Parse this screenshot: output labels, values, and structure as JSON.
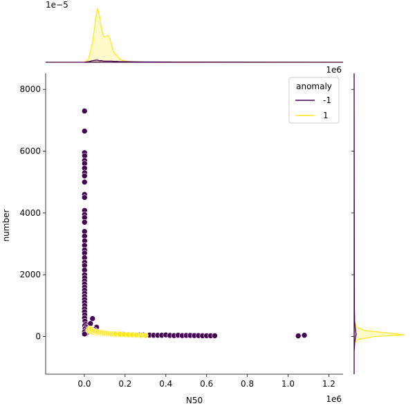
{
  "chart_data": {
    "type": "scatter",
    "title": "",
    "xlabel": "N50",
    "ylabel": "number",
    "xlim": [
      -190000,
      1270000
    ],
    "ylim": [
      -1220,
      8520
    ],
    "x_offset_label": "1e6",
    "y_offset_label": "1e6",
    "top_marginal_offset_label": "1e−5",
    "x_ticks": [
      {
        "value": 0,
        "label": "0.0"
      },
      {
        "value": 200000,
        "label": "0.2"
      },
      {
        "value": 400000,
        "label": "0.4"
      },
      {
        "value": 600000,
        "label": "0.6"
      },
      {
        "value": 800000,
        "label": "0.8"
      },
      {
        "value": 1000000,
        "label": "1.0"
      },
      {
        "value": 1200000,
        "label": "1.2"
      }
    ],
    "y_ticks": [
      {
        "value": 0,
        "label": "0"
      },
      {
        "value": 2000,
        "label": "2000"
      },
      {
        "value": 4000,
        "label": "4000"
      },
      {
        "value": 6000,
        "label": "6000"
      },
      {
        "value": 8000,
        "label": "8000"
      }
    ],
    "legend": {
      "title": "anomaly",
      "placement": "top-right",
      "entries": [
        {
          "label": "-1",
          "color": "#440154"
        },
        {
          "label": "1",
          "color": "#fde725"
        }
      ]
    },
    "series": [
      {
        "name": "-1",
        "color": "#440154",
        "points": [
          [
            1000,
            7300
          ],
          [
            1000,
            6650
          ],
          [
            1000,
            5950
          ],
          [
            1500,
            5850
          ],
          [
            1000,
            5700
          ],
          [
            1200,
            5600
          ],
          [
            1000,
            5450
          ],
          [
            1500,
            5300
          ],
          [
            1000,
            5200
          ],
          [
            1000,
            5000
          ],
          [
            1000,
            4600
          ],
          [
            1000,
            4500
          ],
          [
            1200,
            4080
          ],
          [
            1000,
            3950
          ],
          [
            1000,
            3850
          ],
          [
            1000,
            3700
          ],
          [
            1000,
            3400
          ],
          [
            1000,
            3250
          ],
          [
            1500,
            3100
          ],
          [
            1000,
            2950
          ],
          [
            1000,
            2800
          ],
          [
            1000,
            2700
          ],
          [
            1000,
            2550
          ],
          [
            1200,
            2400
          ],
          [
            1000,
            2300
          ],
          [
            1000,
            2150
          ],
          [
            1000,
            2000
          ],
          [
            1500,
            1900
          ],
          [
            1000,
            1800
          ],
          [
            1000,
            1700
          ],
          [
            1000,
            1600
          ],
          [
            1000,
            1500
          ],
          [
            1200,
            1400
          ],
          [
            1000,
            1300
          ],
          [
            1000,
            1200
          ],
          [
            1000,
            1100
          ],
          [
            1500,
            1000
          ],
          [
            1000,
            900
          ],
          [
            1000,
            800
          ],
          [
            2000,
            700
          ],
          [
            1000,
            600
          ],
          [
            3000,
            500
          ],
          [
            5000,
            400
          ],
          [
            2000,
            350
          ],
          [
            8000,
            300
          ],
          [
            4000,
            250
          ],
          [
            10000,
            200
          ],
          [
            1000,
            150
          ],
          [
            12000,
            120
          ],
          [
            1000,
            80
          ],
          [
            40000,
            580
          ],
          [
            30000,
            420
          ],
          [
            60000,
            300
          ],
          [
            50000,
            220
          ],
          [
            35000,
            180
          ],
          [
            25000,
            150
          ],
          [
            70000,
            130
          ],
          [
            90000,
            110
          ],
          [
            110000,
            100
          ],
          [
            150000,
            90
          ],
          [
            170000,
            80
          ],
          [
            190000,
            70
          ],
          [
            220000,
            60
          ],
          [
            240000,
            60
          ],
          [
            270000,
            50
          ],
          [
            290000,
            50
          ],
          [
            320000,
            45
          ],
          [
            340000,
            40
          ],
          [
            360000,
            40
          ],
          [
            380000,
            40
          ],
          [
            400000,
            50
          ],
          [
            420000,
            35
          ],
          [
            440000,
            30
          ],
          [
            460000,
            40
          ],
          [
            480000,
            30
          ],
          [
            500000,
            35
          ],
          [
            520000,
            35
          ],
          [
            540000,
            30
          ],
          [
            560000,
            30
          ],
          [
            580000,
            25
          ],
          [
            600000,
            25
          ],
          [
            620000,
            25
          ],
          [
            640000,
            25
          ],
          [
            1050000,
            20
          ],
          [
            1080000,
            40
          ]
        ]
      },
      {
        "name": "1",
        "color": "#fde725",
        "points": [
          [
            20000,
            200
          ],
          [
            30000,
            160
          ],
          [
            40000,
            140
          ],
          [
            50000,
            130
          ],
          [
            60000,
            120
          ],
          [
            70000,
            110
          ],
          [
            80000,
            100
          ],
          [
            90000,
            95
          ],
          [
            100000,
            90
          ],
          [
            110000,
            85
          ],
          [
            120000,
            80
          ],
          [
            130000,
            75
          ],
          [
            140000,
            70
          ],
          [
            150000,
            65
          ],
          [
            160000,
            60
          ],
          [
            170000,
            60
          ],
          [
            180000,
            55
          ],
          [
            200000,
            50
          ],
          [
            220000,
            45
          ],
          [
            240000,
            45
          ],
          [
            260000,
            40
          ],
          [
            280000,
            40
          ],
          [
            300000,
            35
          ],
          [
            25000,
            260
          ],
          [
            35000,
            230
          ],
          [
            45000,
            190
          ],
          [
            55000,
            170
          ],
          [
            65000,
            150
          ],
          [
            75000,
            140
          ],
          [
            85000,
            130
          ],
          [
            95000,
            120
          ],
          [
            105000,
            110
          ],
          [
            115000,
            100
          ],
          [
            125000,
            95
          ],
          [
            135000,
            90
          ],
          [
            145000,
            85
          ],
          [
            155000,
            80
          ],
          [
            175000,
            75
          ],
          [
            195000,
            70
          ],
          [
            215000,
            60
          ],
          [
            235000,
            55
          ],
          [
            255000,
            50
          ]
        ]
      }
    ],
    "top_marginal_density": {
      "x": [
        -190000,
        0,
        20000,
        40000,
        55000,
        65000,
        75000,
        85000,
        95000,
        105000,
        115000,
        125000,
        135000,
        145000,
        160000,
        175000,
        190000,
        210000,
        250000,
        300000,
        400000,
        600000,
        1270000
      ],
      "series": [
        {
          "name": "1",
          "values": [
            0,
            0,
            0.05,
            0.35,
            0.8,
            1.0,
            0.85,
            0.6,
            0.48,
            0.47,
            0.5,
            0.44,
            0.3,
            0.18,
            0.12,
            0.06,
            0.03,
            0.015,
            0.008,
            0.004,
            0.002,
            0.001,
            0
          ]
        },
        {
          "name": "-1",
          "values": [
            0,
            0,
            0.01,
            0.03,
            0.04,
            0.04,
            0.03,
            0.03,
            0.02,
            0.02,
            0.02,
            0.02,
            0.02,
            0.015,
            0.015,
            0.012,
            0.01,
            0.01,
            0.008,
            0.006,
            0.004,
            0.002,
            0
          ]
        }
      ]
    },
    "right_marginal_density": {
      "y": [
        -1220,
        -500,
        -200,
        -100,
        0,
        50,
        100,
        150,
        200,
        300,
        500,
        1000,
        8520
      ],
      "series": [
        {
          "name": "1",
          "values": [
            0,
            0,
            0.02,
            0.08,
            0.4,
            1.0,
            0.75,
            0.45,
            0.2,
            0.05,
            0.01,
            0,
            0
          ]
        },
        {
          "name": "-1",
          "values": [
            0,
            0,
            0.01,
            0.02,
            0.03,
            0.04,
            0.04,
            0.03,
            0.03,
            0.02,
            0.01,
            0.005,
            0
          ]
        }
      ]
    }
  }
}
